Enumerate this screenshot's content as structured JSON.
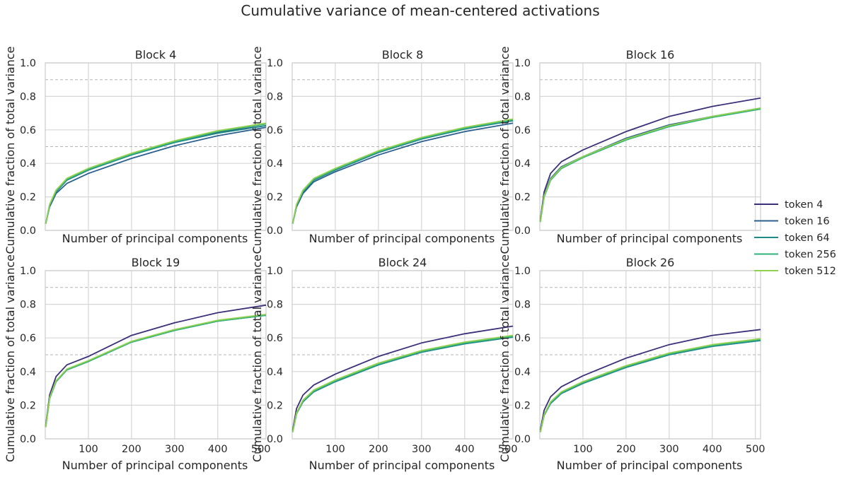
{
  "chart_data": {
    "title": "Cumulative variance of mean-centered activations",
    "type": "line",
    "xlabel": "Number of principal components",
    "ylabel": "Cumulative fraction of total variance",
    "xlim": [
      0,
      512
    ],
    "ylim": [
      0,
      1.0
    ],
    "x_ticks": [
      100,
      200,
      300,
      400,
      500
    ],
    "y_ticks": [
      0.0,
      0.2,
      0.4,
      0.6,
      0.8,
      1.0
    ],
    "y_tick_labels": [
      "0.0",
      "0.2",
      "0.4",
      "0.6",
      "0.8",
      "1.0"
    ],
    "reference_lines": [
      0.5,
      0.9
    ],
    "grid": true,
    "legend_position": "right",
    "x": [
      1,
      10,
      25,
      50,
      100,
      200,
      300,
      400,
      512
    ],
    "colors": {
      "token 4": "#3b2f7a",
      "token 16": "#2a5f8f",
      "token 64": "#1f8a8a",
      "token 256": "#2fb27a",
      "token 512": "#8fd14f"
    },
    "legend": [
      "token 4",
      "token 16",
      "token 64",
      "token 256",
      "token 512"
    ],
    "panels": [
      {
        "title": "Block 4",
        "series": [
          {
            "name": "token 4",
            "values": [
              0.04,
              0.15,
              0.23,
              0.3,
              0.36,
              0.455,
              0.53,
              0.585,
              0.625
            ]
          },
          {
            "name": "token 16",
            "values": [
              0.04,
              0.14,
              0.22,
              0.28,
              0.34,
              0.43,
              0.505,
              0.565,
              0.615
            ]
          },
          {
            "name": "token 64",
            "values": [
              0.04,
              0.15,
              0.23,
              0.3,
              0.36,
              0.45,
              0.525,
              0.58,
              0.625
            ]
          },
          {
            "name": "token 256",
            "values": [
              0.04,
              0.15,
              0.235,
              0.305,
              0.365,
              0.455,
              0.53,
              0.59,
              0.635
            ]
          },
          {
            "name": "token 512",
            "values": [
              0.04,
              0.155,
              0.24,
              0.31,
              0.37,
              0.46,
              0.535,
              0.595,
              0.64
            ]
          }
        ]
      },
      {
        "title": "Block 8",
        "series": [
          {
            "name": "token 4",
            "values": [
              0.04,
              0.15,
              0.23,
              0.3,
              0.36,
              0.465,
              0.545,
              0.61,
              0.655
            ]
          },
          {
            "name": "token 16",
            "values": [
              0.04,
              0.14,
              0.22,
              0.29,
              0.35,
              0.45,
              0.53,
              0.59,
              0.64
            ]
          },
          {
            "name": "token 64",
            "values": [
              0.04,
              0.15,
              0.23,
              0.3,
              0.36,
              0.465,
              0.545,
              0.605,
              0.655
            ]
          },
          {
            "name": "token 256",
            "values": [
              0.04,
              0.15,
              0.235,
              0.305,
              0.365,
              0.47,
              0.55,
              0.61,
              0.66
            ]
          },
          {
            "name": "token 512",
            "values": [
              0.04,
              0.155,
              0.24,
              0.31,
              0.37,
              0.475,
              0.555,
              0.615,
              0.665
            ]
          }
        ]
      },
      {
        "title": "Block 16",
        "series": [
          {
            "name": "token 4",
            "values": [
              0.06,
              0.23,
              0.34,
              0.41,
              0.48,
              0.59,
              0.68,
              0.74,
              0.79
            ]
          },
          {
            "name": "token 16",
            "values": [
              0.05,
              0.21,
              0.31,
              0.38,
              0.44,
              0.55,
              0.63,
              0.68,
              0.73
            ]
          },
          {
            "name": "token 64",
            "values": [
              0.05,
              0.2,
              0.3,
              0.37,
              0.435,
              0.54,
              0.62,
              0.675,
              0.725
            ]
          },
          {
            "name": "token 256",
            "values": [
              0.05,
              0.2,
              0.3,
              0.37,
              0.435,
              0.54,
              0.62,
              0.675,
              0.725
            ]
          },
          {
            "name": "token 512",
            "values": [
              0.05,
              0.205,
              0.305,
              0.375,
              0.44,
              0.545,
              0.625,
              0.68,
              0.73
            ]
          }
        ]
      },
      {
        "title": "Block 19",
        "series": [
          {
            "name": "token 4",
            "values": [
              0.08,
              0.26,
              0.37,
              0.44,
              0.49,
              0.615,
              0.69,
              0.75,
              0.795
            ]
          },
          {
            "name": "token 16",
            "values": [
              0.07,
              0.24,
              0.34,
              0.41,
              0.46,
              0.575,
              0.645,
              0.7,
              0.735
            ]
          },
          {
            "name": "token 64",
            "values": [
              0.07,
              0.24,
              0.34,
              0.41,
              0.46,
              0.575,
              0.645,
              0.7,
              0.735
            ]
          },
          {
            "name": "token 256",
            "values": [
              0.07,
              0.24,
              0.34,
              0.41,
              0.46,
              0.575,
              0.645,
              0.7,
              0.735
            ]
          },
          {
            "name": "token 512",
            "values": [
              0.07,
              0.245,
              0.345,
              0.415,
              0.465,
              0.58,
              0.65,
              0.705,
              0.74
            ]
          }
        ]
      },
      {
        "title": "Block 24",
        "series": [
          {
            "name": "token 4",
            "values": [
              0.05,
              0.18,
              0.26,
              0.32,
              0.385,
              0.49,
              0.57,
              0.625,
              0.67
            ]
          },
          {
            "name": "token 16",
            "values": [
              0.04,
              0.15,
              0.22,
              0.28,
              0.34,
              0.44,
              0.515,
              0.565,
              0.605
            ]
          },
          {
            "name": "token 64",
            "values": [
              0.04,
              0.15,
              0.22,
              0.28,
              0.34,
              0.44,
              0.515,
              0.565,
              0.605
            ]
          },
          {
            "name": "token 256",
            "values": [
              0.04,
              0.15,
              0.225,
              0.285,
              0.345,
              0.445,
              0.52,
              0.57,
              0.61
            ]
          },
          {
            "name": "token 512",
            "values": [
              0.04,
              0.155,
              0.23,
              0.29,
              0.35,
              0.45,
              0.525,
              0.575,
              0.615
            ]
          }
        ]
      },
      {
        "title": "Block 26",
        "series": [
          {
            "name": "token 4",
            "values": [
              0.05,
              0.17,
              0.25,
              0.31,
              0.375,
              0.48,
              0.56,
              0.615,
              0.65
            ]
          },
          {
            "name": "token 16",
            "values": [
              0.04,
              0.14,
              0.21,
              0.27,
              0.33,
              0.425,
              0.5,
              0.55,
              0.585
            ]
          },
          {
            "name": "token 64",
            "values": [
              0.04,
              0.14,
              0.21,
              0.27,
              0.33,
              0.425,
              0.5,
              0.55,
              0.585
            ]
          },
          {
            "name": "token 256",
            "values": [
              0.04,
              0.14,
              0.215,
              0.275,
              0.335,
              0.43,
              0.505,
              0.555,
              0.59
            ]
          },
          {
            "name": "token 512",
            "values": [
              0.04,
              0.145,
              0.22,
              0.28,
              0.34,
              0.435,
              0.51,
              0.56,
              0.595
            ]
          }
        ]
      }
    ]
  }
}
